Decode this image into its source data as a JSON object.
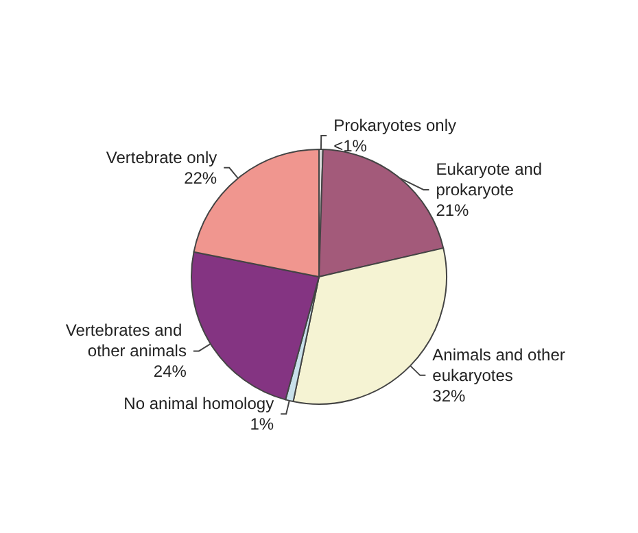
{
  "chart_data": {
    "type": "pie",
    "categories": [
      "Prokaryotes only",
      "Eukaryote and prokaryote",
      "Animals and other eukaryotes",
      "No animal homology",
      "Vertebrates and other animals",
      "Vertebrate only"
    ],
    "values": [
      0.5,
      21,
      32,
      1,
      24,
      22
    ],
    "value_labels": [
      "<1%",
      "21%",
      "32%",
      "1%",
      "24%",
      "22%"
    ],
    "colors": [
      "#d9d9d9",
      "#a35a7a",
      "#f5f3d3",
      "#c8e0ea",
      "#843482",
      "#f0968f"
    ],
    "legend": false
  }
}
